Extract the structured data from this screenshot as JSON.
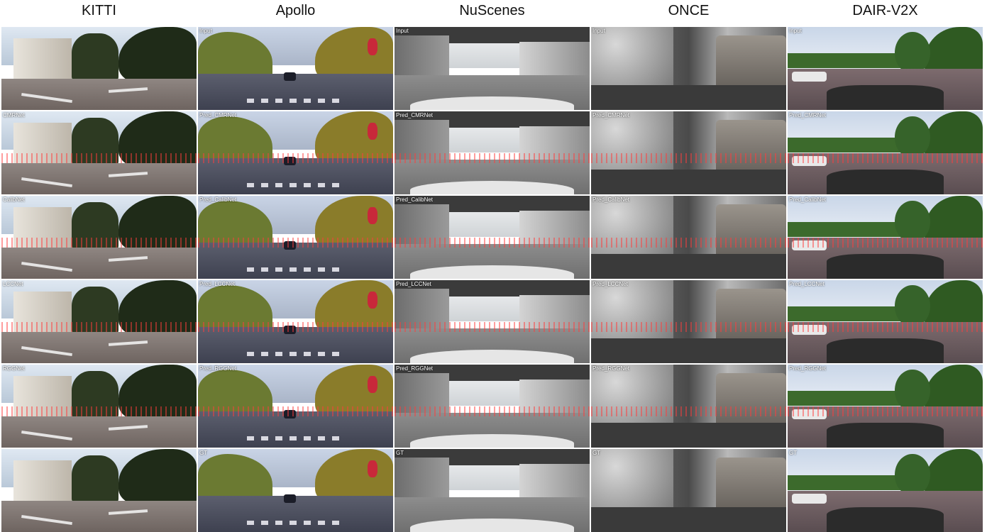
{
  "columns": [
    {
      "title": "KITTI",
      "scene": "kitti"
    },
    {
      "title": "Apollo",
      "scene": "apollo"
    },
    {
      "title": "NuScenes",
      "scene": "nuscenes"
    },
    {
      "title": "ONCE",
      "scene": "once"
    },
    {
      "title": "DAIR-V2X",
      "scene": "dair"
    }
  ],
  "rows": [
    {
      "labels": [
        "",
        "Input",
        "Input",
        "Input",
        "Input"
      ]
    },
    {
      "labels": [
        "CMRNet",
        "Pred_CMRNet",
        "Pred_CMRNet",
        "Pred_CMRNet",
        "Pred_CMRNet"
      ]
    },
    {
      "labels": [
        "CalibNet",
        "Pred_CalibNet",
        "Pred_CalibNet",
        "Pred_CalibNet",
        "Pred_CalibNet"
      ]
    },
    {
      "labels": [
        "LCCNet",
        "Pred_LCCNet",
        "Pred_LCCNet",
        "Pred_LCCNet",
        "Pred_LCCNet"
      ]
    },
    {
      "labels": [
        "RGGNet",
        "Pred_RGGNet",
        "Pred_RGGNet",
        "Pred_RGGNet",
        "Pred_RGGNet"
      ]
    },
    {
      "labels": [
        "",
        "GT",
        "GT",
        "GT",
        "GT"
      ]
    }
  ]
}
